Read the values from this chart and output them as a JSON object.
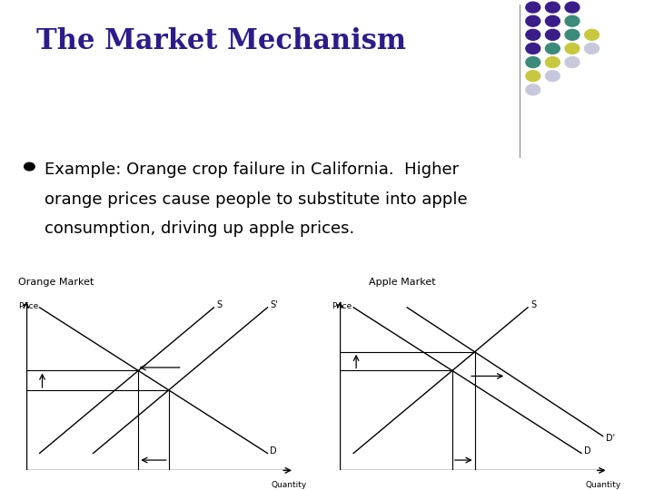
{
  "title": "The Market Mechanism",
  "title_color": "#2E1B8B",
  "title_fontsize": 22,
  "bullet_text_line1": "Example: Orange crop failure in California.  Higher",
  "bullet_text_line2": "orange prices cause people to substitute into apple",
  "bullet_text_line3": "consumption, driving up apple prices.",
  "bullet_fontsize": 13,
  "bg_color": "#FFFFFF",
  "left_chart_title": "Orange Market",
  "right_chart_title": "Apple Market",
  "dot_grid": [
    [
      "#3B1D8A",
      "#3B1D8A",
      "#3B1D8A"
    ],
    [
      "#3B1D8A",
      "#3B1D8A",
      "#3B8A7A",
      "#C8C840"
    ],
    [
      "#3B1D8A",
      "#3B8A7A",
      "#C8C840",
      "#C8C8DC"
    ],
    [
      "#3B8A7A",
      "#C8C840",
      "#C8C8DC"
    ],
    [
      "#C8C840",
      "#C8C8DC"
    ],
    [
      "#C8C8DC"
    ]
  ],
  "separator_color": "#888888",
  "line_color": "#000000"
}
